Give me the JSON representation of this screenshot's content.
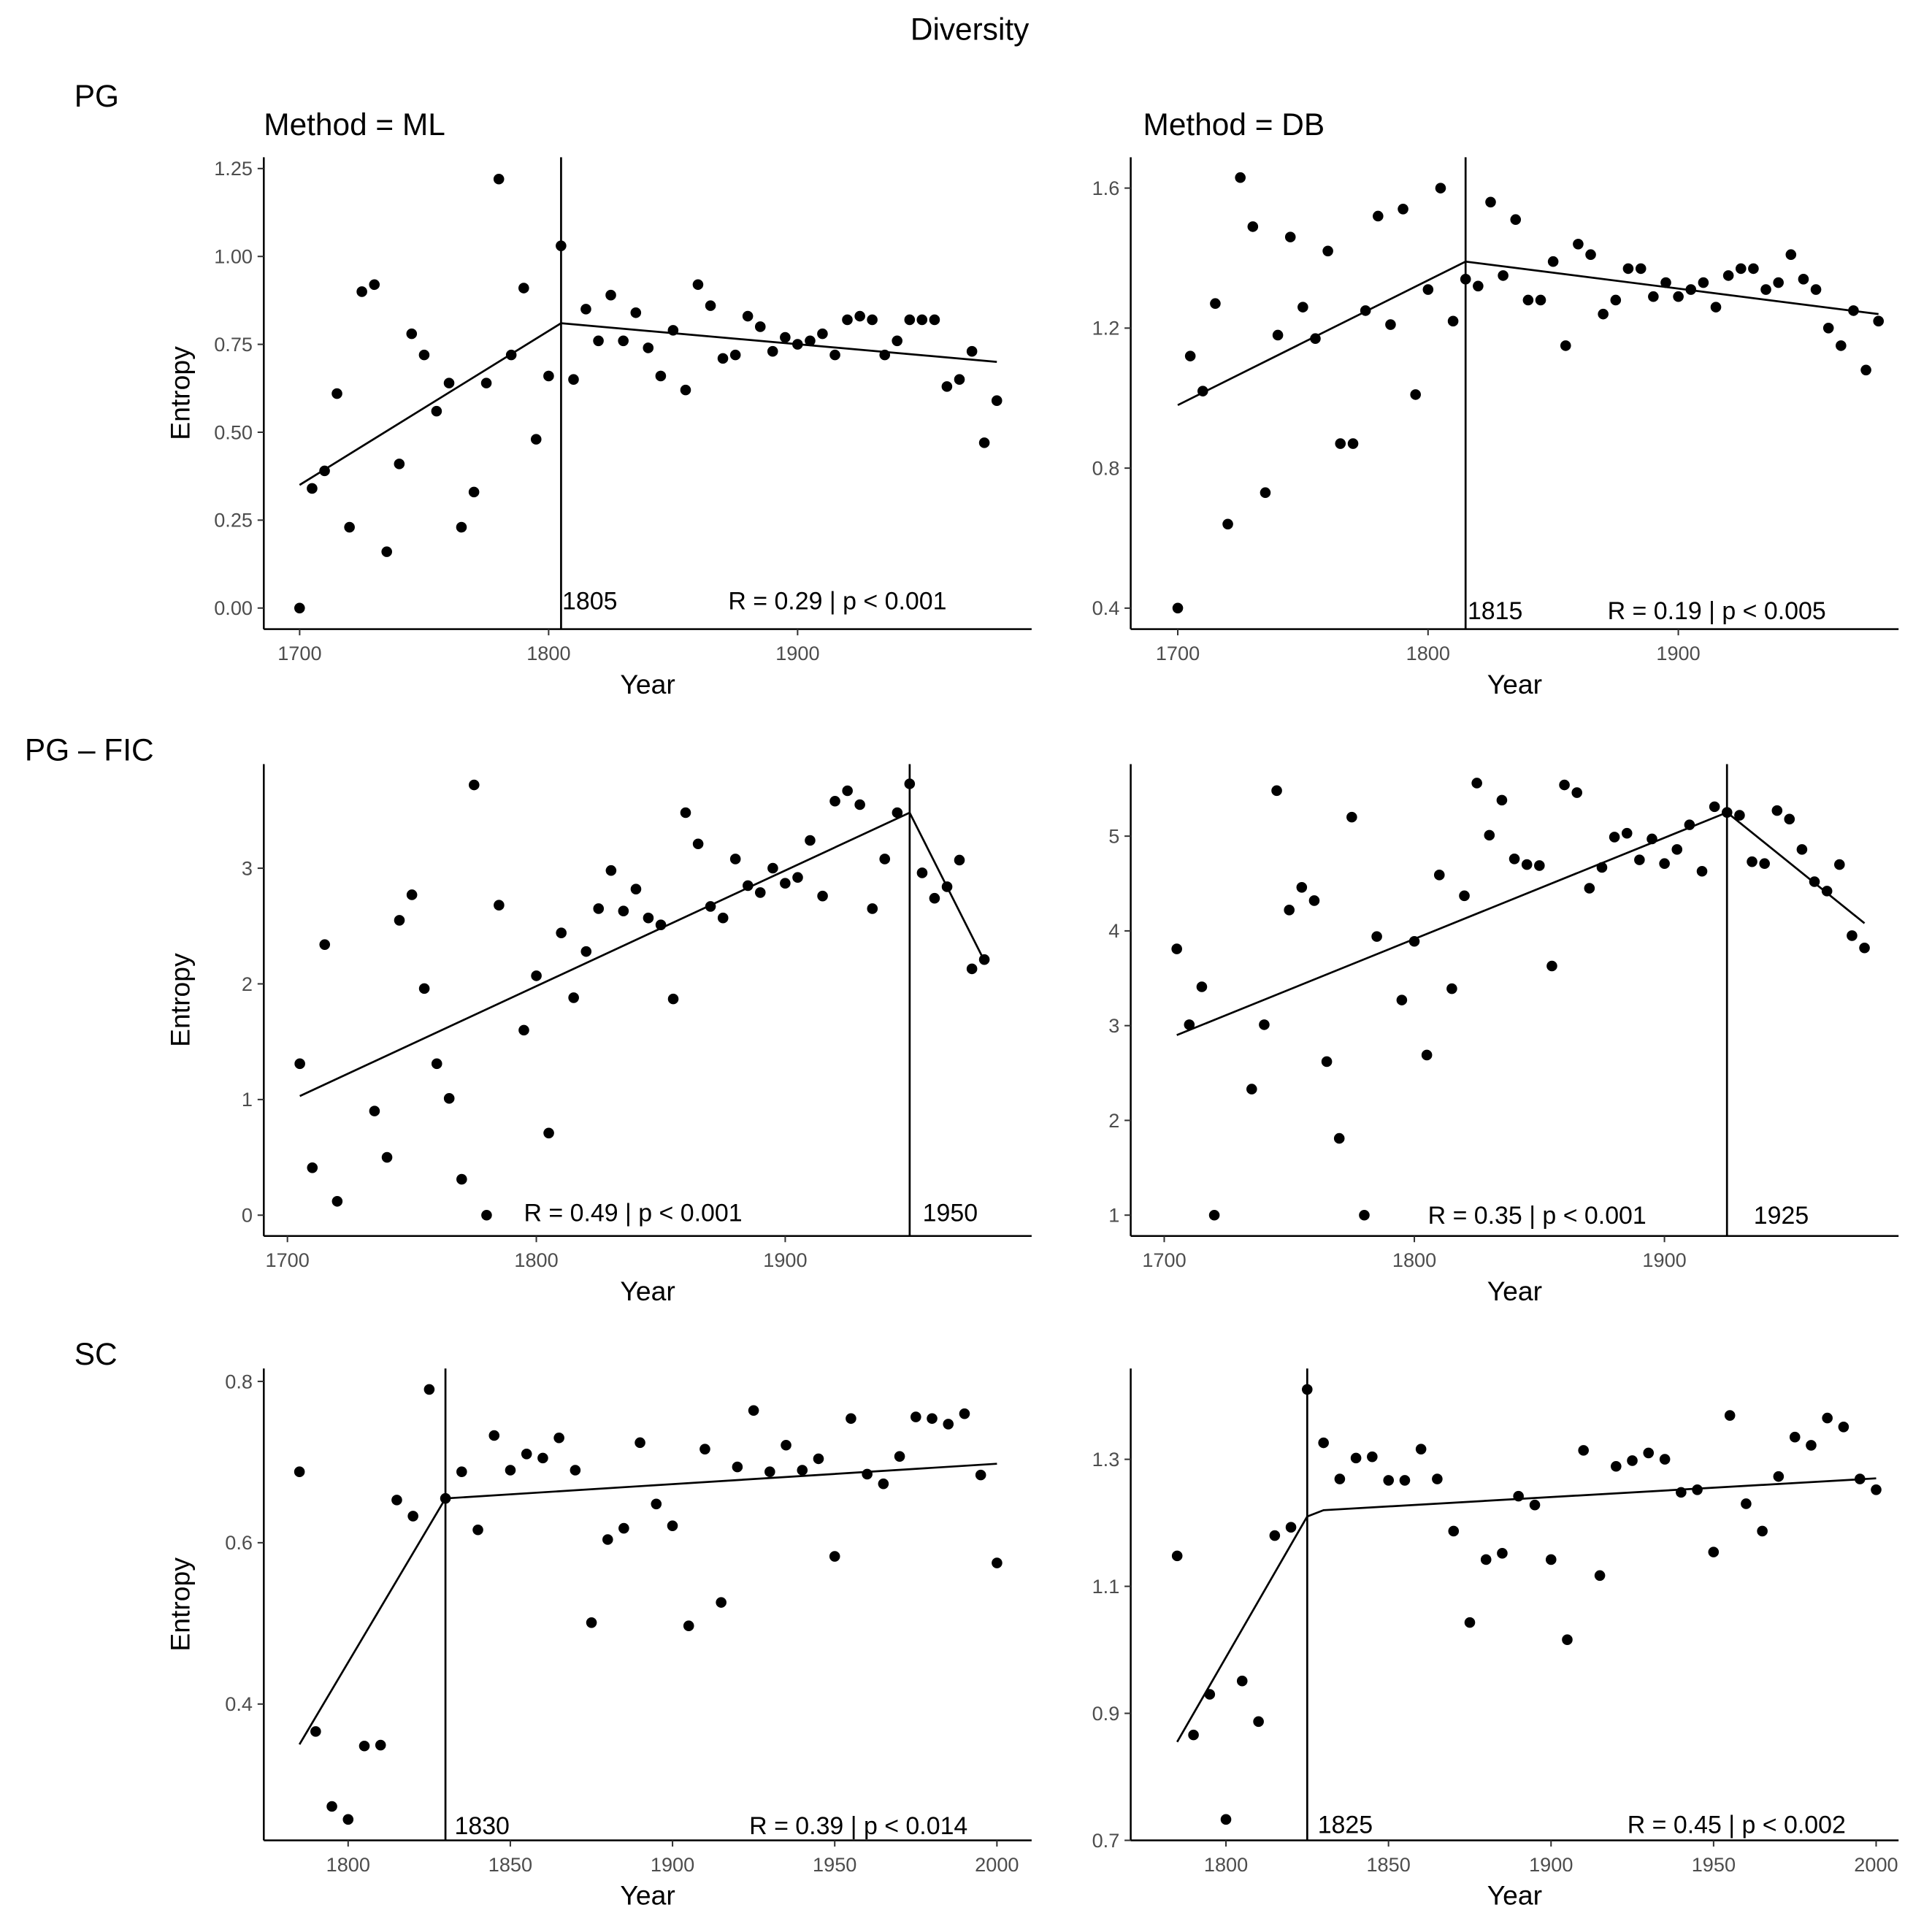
{
  "title": "Diversity",
  "row_labels": [
    "PG",
    "PG – FIC",
    "SC"
  ],
  "column_labels": [
    "Method = ML",
    "Method = DB"
  ],
  "chart_data": [
    {
      "type": "scatter",
      "row": "PG",
      "method": "ML",
      "xlabel": "Year",
      "ylabel": "Entropy",
      "xlim": [
        1685.6,
        1994
      ],
      "ylim": [
        -0.06,
        1.282
      ],
      "xticks": [
        1700,
        1800,
        1900
      ],
      "yticks": [
        0,
        0.25,
        0.5,
        0.75,
        1.0,
        1.25
      ],
      "ytick_labels": [
        "0.00",
        "0.25",
        "0.50",
        "0.75",
        "1.00",
        "1.25"
      ],
      "x": [
        1700,
        1705,
        1710,
        1715,
        1720,
        1725,
        1730,
        1735,
        1740,
        1745,
        1750,
        1755,
        1760,
        1765,
        1770,
        1775,
        1780,
        1785,
        1790,
        1795,
        1800,
        1805,
        1810,
        1815,
        1820,
        1825,
        1830,
        1835,
        1840,
        1845,
        1850,
        1855,
        1860,
        1865,
        1870,
        1875,
        1880,
        1885,
        1890,
        1895,
        1900,
        1905,
        1910,
        1915,
        1920,
        1925,
        1930,
        1935,
        1940,
        1945,
        1950,
        1955,
        1960,
        1965,
        1970,
        1975,
        1980
      ],
      "y": [
        0.0,
        0.34,
        0.39,
        0.61,
        0.23,
        0.9,
        0.92,
        0.16,
        0.41,
        0.78,
        0.72,
        0.56,
        0.64,
        0.23,
        0.33,
        0.64,
        1.22,
        0.72,
        0.91,
        0.48,
        0.66,
        1.03,
        0.65,
        0.85,
        0.76,
        0.89,
        0.76,
        0.84,
        0.74,
        0.66,
        0.79,
        0.62,
        0.92,
        0.86,
        0.71,
        0.72,
        0.83,
        0.8,
        0.73,
        0.77,
        0.75,
        0.76,
        0.78,
        0.72,
        0.82,
        0.83,
        0.82,
        0.72,
        0.76,
        0.82,
        0.82,
        0.82,
        0.63,
        0.65,
        0.73,
        0.47,
        0.59
      ],
      "fit": {
        "x": [
          1700,
          1805,
          1980
        ],
        "y": [
          0.35,
          0.81,
          0.7
        ]
      },
      "breakpoint": 1805,
      "breakpoint_label": "1805",
      "annotation": "R = 0.29 | p < 0.001"
    },
    {
      "type": "scatter",
      "row": "PG",
      "method": "DB",
      "xlabel": "Year",
      "ylabel": "",
      "xlim": [
        1681.2,
        1988
      ],
      "ylim": [
        0.34,
        1.688
      ],
      "xticks": [
        1700,
        1800,
        1900
      ],
      "yticks": [
        0.4,
        0.8,
        1.2,
        1.6
      ],
      "ytick_labels": [
        "0.4",
        "0.8",
        "1.2",
        "1.6"
      ],
      "x": [
        1700,
        1705,
        1710,
        1715,
        1720,
        1725,
        1730,
        1735,
        1740,
        1745,
        1750,
        1755,
        1760,
        1765,
        1770,
        1775,
        1780,
        1785,
        1790,
        1795,
        1800,
        1805,
        1810,
        1815,
        1820,
        1825,
        1830,
        1835,
        1840,
        1845,
        1850,
        1855,
        1860,
        1865,
        1870,
        1875,
        1880,
        1885,
        1890,
        1895,
        1900,
        1905,
        1910,
        1915,
        1920,
        1925,
        1930,
        1935,
        1940,
        1945,
        1950,
        1955,
        1960,
        1965,
        1970,
        1975,
        1980
      ],
      "y": [
        0.4,
        1.12,
        1.02,
        1.27,
        0.64,
        1.63,
        1.49,
        0.73,
        1.18,
        1.46,
        1.26,
        1.17,
        1.42,
        0.87,
        0.87,
        1.25,
        1.52,
        1.21,
        1.54,
        1.01,
        1.31,
        1.6,
        1.22,
        1.34,
        1.32,
        1.56,
        1.35,
        1.51,
        1.28,
        1.28,
        1.39,
        1.15,
        1.44,
        1.41,
        1.24,
        1.28,
        1.37,
        1.37,
        1.29,
        1.33,
        1.29,
        1.31,
        1.33,
        1.26,
        1.35,
        1.37,
        1.37,
        1.31,
        1.33,
        1.41,
        1.34,
        1.31,
        1.2,
        1.15,
        1.25,
        1.08,
        1.22
      ],
      "fit": {
        "x": [
          1700,
          1815,
          1980
        ],
        "y": [
          0.98,
          1.39,
          1.24
        ]
      },
      "breakpoint": 1815,
      "breakpoint_label": "1815",
      "annotation": "R = 0.19 | p < 0.005"
    },
    {
      "type": "scatter",
      "row": "PG – FIC",
      "method": "ML",
      "xlabel": "Year",
      "ylabel": "Entropy",
      "xlim": [
        1690.5,
        1999
      ],
      "ylim": [
        -0.18,
        3.9
      ],
      "xticks": [
        1700,
        1800,
        1900
      ],
      "yticks": [
        0,
        1,
        2,
        3
      ],
      "ytick_labels": [
        "0",
        "1",
        "2",
        "3"
      ],
      "x": [
        1705,
        1710,
        1715,
        1720,
        1735,
        1740,
        1745,
        1750,
        1755,
        1760,
        1765,
        1770,
        1775,
        1780,
        1785,
        1795,
        1800,
        1805,
        1810,
        1815,
        1820,
        1825,
        1830,
        1835,
        1840,
        1845,
        1850,
        1855,
        1860,
        1865,
        1870,
        1875,
        1880,
        1885,
        1890,
        1895,
        1900,
        1905,
        1910,
        1915,
        1920,
        1925,
        1930,
        1935,
        1940,
        1945,
        1950,
        1955,
        1960,
        1965,
        1970,
        1975,
        1980
      ],
      "y": [
        1.31,
        0.41,
        2.34,
        0.12,
        0.9,
        0.5,
        2.55,
        2.77,
        1.96,
        1.31,
        1.01,
        0.31,
        3.72,
        0.0,
        2.68,
        1.6,
        2.07,
        0.71,
        2.44,
        1.88,
        2.28,
        2.65,
        2.98,
        2.63,
        2.82,
        2.57,
        2.51,
        1.87,
        3.48,
        3.21,
        2.67,
        2.57,
        3.08,
        2.85,
        2.79,
        3.0,
        2.87,
        2.92,
        3.24,
        2.76,
        3.58,
        3.67,
        3.55,
        2.65,
        3.08,
        3.48,
        3.73,
        2.96,
        2.74,
        2.84,
        3.07,
        2.13,
        2.21
      ],
      "fit": {
        "x": [
          1705,
          1950,
          1980
        ],
        "y": [
          1.03,
          3.48,
          2.2
        ]
      },
      "breakpoint": 1950,
      "breakpoint_label": "1950",
      "annotation": "R = 0.49 | p < 0.001"
    },
    {
      "type": "scatter",
      "row": "PG – FIC",
      "method": "DB",
      "xlabel": "Year",
      "ylabel": "",
      "xlim": [
        1686.6,
        1993.6
      ],
      "ylim": [
        0.78,
        5.76
      ],
      "xticks": [
        1700,
        1800,
        1900
      ],
      "yticks": [
        1,
        2,
        3,
        4,
        5
      ],
      "ytick_labels": [
        "1",
        "2",
        "3",
        "4",
        "5"
      ],
      "x": [
        1705,
        1710,
        1715,
        1720,
        1735,
        1740,
        1745,
        1750,
        1755,
        1760,
        1765,
        1770,
        1775,
        1780,
        1785,
        1795,
        1800,
        1805,
        1810,
        1815,
        1820,
        1825,
        1830,
        1835,
        1840,
        1845,
        1850,
        1855,
        1860,
        1865,
        1870,
        1875,
        1880,
        1885,
        1890,
        1895,
        1900,
        1905,
        1910,
        1915,
        1920,
        1925,
        1930,
        1935,
        1940,
        1945,
        1950,
        1955,
        1960,
        1965,
        1970,
        1975,
        1980
      ],
      "y": [
        3.81,
        3.01,
        3.41,
        1.0,
        2.33,
        3.01,
        5.48,
        4.22,
        4.46,
        4.32,
        2.62,
        1.81,
        5.2,
        1.0,
        3.94,
        3.27,
        3.89,
        2.69,
        4.59,
        3.39,
        4.37,
        5.56,
        5.01,
        5.38,
        4.76,
        4.7,
        4.69,
        3.63,
        5.54,
        5.46,
        4.45,
        4.67,
        4.99,
        5.03,
        4.75,
        4.97,
        4.71,
        4.86,
        5.12,
        4.63,
        5.31,
        5.25,
        5.22,
        4.73,
        4.71,
        5.27,
        5.18,
        4.86,
        4.52,
        4.42,
        4.7,
        3.95,
        3.82
      ],
      "fit": {
        "x": [
          1705,
          1925,
          1980
        ],
        "y": [
          2.9,
          5.25,
          4.08
        ]
      },
      "breakpoint": 1925,
      "breakpoint_label": "1925",
      "annotation": "R = 0.35 | p < 0.001"
    },
    {
      "type": "scatter",
      "row": "SC",
      "method": "ML",
      "xlabel": "Year",
      "ylabel": "Entropy",
      "xlim": [
        1774,
        2010.7
      ],
      "ylim": [
        0.231,
        0.816
      ],
      "xticks": [
        1800,
        1850,
        1900,
        1950,
        2000
      ],
      "yticks": [
        0.4,
        0.6,
        0.8
      ],
      "ytick_labels": [
        "0.4",
        "0.6",
        "0.8"
      ],
      "x": [
        1785,
        1790,
        1795,
        1800,
        1805,
        1810,
        1815,
        1820,
        1825,
        1830,
        1835,
        1840,
        1845,
        1850,
        1855,
        1860,
        1865,
        1870,
        1875,
        1880,
        1885,
        1890,
        1895,
        1900,
        1905,
        1910,
        1915,
        1920,
        1925,
        1930,
        1935,
        1940,
        1945,
        1950,
        1955,
        1960,
        1965,
        1970,
        1975,
        1980,
        1985,
        1990,
        1995,
        2000
      ],
      "y": [
        0.688,
        0.366,
        0.273,
        0.257,
        0.348,
        0.349,
        0.653,
        0.633,
        0.79,
        0.655,
        0.688,
        0.616,
        0.733,
        0.69,
        0.71,
        0.705,
        0.73,
        0.69,
        0.501,
        0.604,
        0.618,
        0.724,
        0.648,
        0.621,
        0.497,
        0.716,
        0.526,
        0.694,
        0.764,
        0.688,
        0.721,
        0.69,
        0.704,
        0.583,
        0.754,
        0.685,
        0.673,
        0.707,
        0.756,
        0.754,
        0.747,
        0.76,
        0.684,
        0.575
      ],
      "fit": {
        "x": [
          1785,
          1830,
          2000
        ],
        "y": [
          0.35,
          0.655,
          0.698
        ]
      },
      "breakpoint": 1830,
      "breakpoint_label": "1830",
      "annotation": "R = 0.39 | p < 0.014"
    },
    {
      "type": "scatter",
      "row": "SC",
      "method": "DB",
      "xlabel": "Year",
      "ylabel": "",
      "xlim": [
        1770.7,
        2006.9
      ],
      "ylim": [
        0.7,
        1.443
      ],
      "xticks": [
        1800,
        1850,
        1900,
        1950,
        2000
      ],
      "yticks": [
        0.7,
        0.9,
        1.1,
        1.3
      ],
      "ytick_labels": [
        "0.7",
        "0.9",
        "1.1",
        "1.3"
      ],
      "x": [
        1785,
        1790,
        1795,
        1800,
        1805,
        1810,
        1815,
        1820,
        1825,
        1830,
        1835,
        1840,
        1845,
        1850,
        1855,
        1860,
        1865,
        1870,
        1875,
        1880,
        1885,
        1890,
        1895,
        1900,
        1905,
        1910,
        1915,
        1920,
        1925,
        1930,
        1935,
        1940,
        1945,
        1950,
        1955,
        1960,
        1965,
        1970,
        1975,
        1980,
        1985,
        1990,
        1995,
        2000
      ],
      "y": [
        1.148,
        0.866,
        0.93,
        0.733,
        0.951,
        0.887,
        1.18,
        1.193,
        1.41,
        1.326,
        1.269,
        1.302,
        1.304,
        1.267,
        1.267,
        1.316,
        1.269,
        1.187,
        1.043,
        1.142,
        1.152,
        1.242,
        1.228,
        1.142,
        1.016,
        1.314,
        1.117,
        1.289,
        1.298,
        1.31,
        1.3,
        1.248,
        1.252,
        1.154,
        1.369,
        1.23,
        1.187,
        1.273,
        1.335,
        1.322,
        1.365,
        1.351,
        1.269,
        1.252
      ],
      "fit": {
        "x": [
          1785,
          1825,
          1830,
          2000
        ],
        "y": [
          0.855,
          1.21,
          1.22,
          1.27
        ]
      },
      "breakpoint": 1825,
      "breakpoint_label": "1825",
      "annotation": "R = 0.45 | p < 0.002"
    }
  ]
}
